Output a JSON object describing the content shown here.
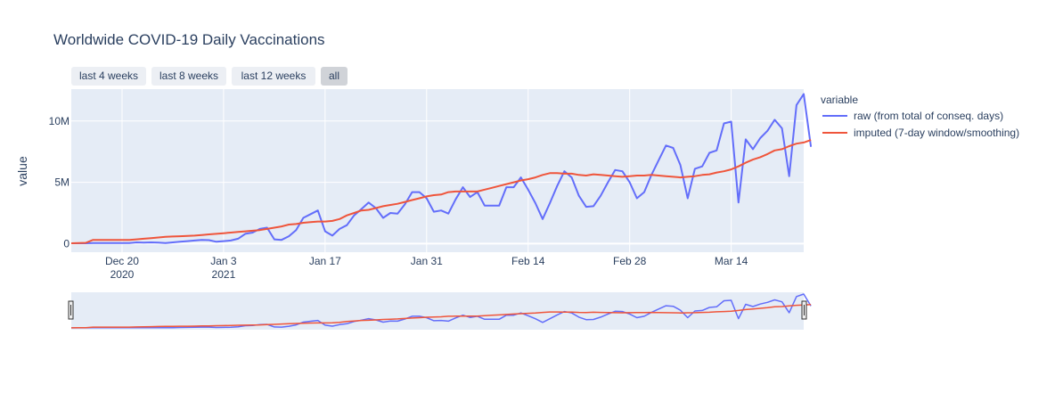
{
  "chart_data": {
    "type": "line",
    "title": "Worldwide COVID-19 Daily Vaccinations",
    "xlabel": "",
    "ylabel": "value",
    "x_start": "2020-12-13",
    "x_range": [
      "2020-12-13",
      "2021-03-24"
    ],
    "ylim": [
      -700000,
      12600000
    ],
    "x_ticks": [
      {
        "date": "2020-12-20",
        "label": "Dec 20",
        "sub": "2020"
      },
      {
        "date": "2021-01-03",
        "label": "Jan 3",
        "sub": "2021"
      },
      {
        "date": "2021-01-17",
        "label": "Jan 17",
        "sub": ""
      },
      {
        "date": "2021-01-31",
        "label": "Jan 31",
        "sub": ""
      },
      {
        "date": "2021-02-14",
        "label": "Feb 14",
        "sub": ""
      },
      {
        "date": "2021-02-28",
        "label": "Feb 28",
        "sub": ""
      },
      {
        "date": "2021-03-14",
        "label": "Mar 14",
        "sub": ""
      }
    ],
    "y_ticks": [
      {
        "value": 0,
        "label": "0"
      },
      {
        "value": 5000000,
        "label": "5M"
      },
      {
        "value": 10000000,
        "label": "10M"
      }
    ],
    "grid": true,
    "legend": {
      "title": "variable",
      "position": "right"
    },
    "series": [
      {
        "name": "raw (from total of conseq. days)",
        "color": "#636efa",
        "values": [
          0.03,
          0.03,
          0.03,
          0.05,
          0.05,
          0.05,
          0.05,
          0.05,
          0.05,
          0.1,
          0.08,
          0.1,
          0.08,
          0.05,
          0.1,
          0.15,
          0.2,
          0.25,
          0.3,
          0.28,
          0.15,
          0.2,
          0.25,
          0.4,
          0.8,
          0.9,
          1.2,
          1.3,
          0.35,
          0.3,
          0.6,
          1.1,
          2.1,
          2.4,
          2.7,
          1.0,
          0.65,
          1.2,
          1.5,
          2.3,
          2.8,
          3.35,
          2.9,
          2.1,
          2.5,
          2.45,
          3.2,
          4.2,
          4.2,
          3.7,
          2.6,
          2.7,
          2.45,
          3.6,
          4.6,
          3.8,
          4.2,
          3.1,
          3.1,
          3.1,
          4.6,
          4.6,
          5.4,
          4.4,
          3.3,
          2.0,
          3.3,
          4.7,
          5.9,
          5.4,
          3.9,
          3.0,
          3.05,
          3.9,
          5.0,
          6.0,
          5.9,
          5.0,
          3.7,
          4.2,
          5.6,
          6.8,
          8.0,
          7.8,
          6.4,
          3.7,
          6.1,
          6.3,
          7.4,
          7.6,
          9.8,
          9.95,
          3.35,
          8.5,
          7.7,
          8.6,
          9.2,
          10.1,
          9.4,
          5.5,
          11.3,
          12.2,
          7.9
        ]
      },
      {
        "name": "imputed (7-day window/smoothing)",
        "color": "#ef553b",
        "values": [
          0.03,
          0.05,
          0.06,
          0.3,
          0.3,
          0.3,
          0.3,
          0.3,
          0.3,
          0.35,
          0.4,
          0.45,
          0.5,
          0.55,
          0.58,
          0.6,
          0.62,
          0.65,
          0.7,
          0.75,
          0.8,
          0.85,
          0.9,
          0.95,
          1.0,
          1.05,
          1.1,
          1.2,
          1.3,
          1.4,
          1.55,
          1.6,
          1.7,
          1.75,
          1.8,
          1.8,
          1.85,
          2.0,
          2.3,
          2.5,
          2.7,
          2.75,
          2.9,
          3.05,
          3.15,
          3.25,
          3.4,
          3.55,
          3.7,
          3.85,
          3.95,
          4.0,
          4.2,
          4.25,
          4.25,
          4.25,
          4.25,
          4.4,
          4.55,
          4.7,
          4.85,
          5.0,
          5.15,
          5.25,
          5.4,
          5.6,
          5.75,
          5.75,
          5.7,
          5.7,
          5.6,
          5.55,
          5.65,
          5.6,
          5.55,
          5.5,
          5.45,
          5.5,
          5.55,
          5.55,
          5.6,
          5.55,
          5.5,
          5.45,
          5.4,
          5.45,
          5.5,
          5.6,
          5.65,
          5.8,
          5.9,
          6.05,
          6.3,
          6.6,
          6.85,
          7.05,
          7.3,
          7.6,
          7.7,
          7.95,
          8.15,
          8.25,
          8.45
        ]
      }
    ]
  },
  "buttons": [
    {
      "label": "last 4 weeks",
      "active": false
    },
    {
      "label": "last 8 weeks",
      "active": false
    },
    {
      "label": "last 12 weeks",
      "active": false
    },
    {
      "label": "all",
      "active": true
    }
  ],
  "colors": {
    "plot_bg": "#e5ecf6",
    "grid": "#ffffff",
    "text": "#2a3f5f"
  }
}
